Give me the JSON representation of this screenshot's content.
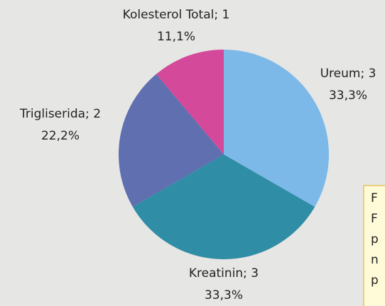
{
  "chart_data": {
    "type": "pie",
    "values": [
      3,
      3,
      2,
      1
    ],
    "value_labels": [
      "Ureum; 3",
      "Kreatinin; 3",
      "Trigliserida; 2",
      "Kolesterol Total; 1"
    ],
    "percent_labels": [
      "33,3%",
      "33,3%",
      "22,2%",
      "11,1%"
    ],
    "colors": [
      "#7db9e8",
      "#2f8da6",
      "#5f6fb0",
      "#d4499a"
    ]
  },
  "note": {
    "lines": [
      "F",
      "F",
      "p",
      "n",
      "p"
    ]
  }
}
